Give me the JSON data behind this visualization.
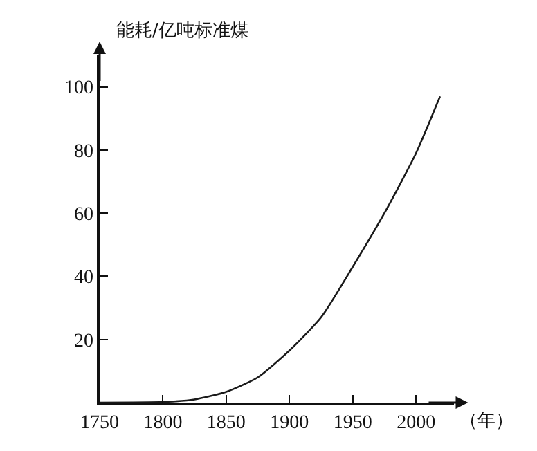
{
  "chart_data": {
    "type": "line",
    "xlabel": "（年）",
    "ylabel": "能耗/亿吨标准煤",
    "x": [
      1750,
      1800,
      1825,
      1850,
      1875,
      1900,
      1925,
      1950,
      1975,
      2000,
      2019
    ],
    "series": [
      {
        "color": "#1a1a1a",
        "values": [
          0,
          0.2,
          1,
          3.4,
          8,
          16.5,
          27,
          43,
          60,
          79,
          97
        ]
      }
    ],
    "xlim": [
      1750,
      2030
    ],
    "ylim": [
      0,
      110
    ],
    "xticks": [
      1750,
      1800,
      1850,
      1900,
      1950,
      2000
    ],
    "yticks": [
      20,
      40,
      60,
      80,
      100
    ],
    "marker": "none",
    "line_style": "solid"
  }
}
